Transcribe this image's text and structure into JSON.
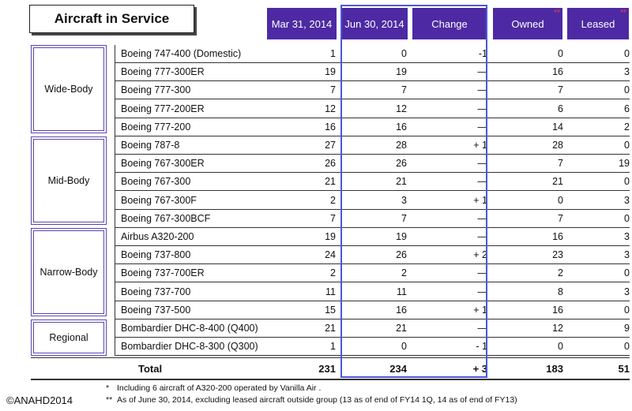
{
  "title": "Aircraft in Service",
  "headers": {
    "mar": "Mar 31, 2014",
    "jun": "Jun 30, 2014",
    "change": "Change",
    "owned": "Owned",
    "leased": "Leased",
    "owned_mark": "**",
    "leased_mark": "**"
  },
  "categories": [
    {
      "label": "Wide-Body"
    },
    {
      "label": "Mid-Body"
    },
    {
      "label": "Narrow-Body"
    },
    {
      "label": "Regional"
    }
  ],
  "rows": [
    {
      "name": "Boeing 747-400 (Domestic)",
      "mar": "1",
      "jun": "0",
      "change": "-1",
      "owned": "0",
      "leased": "0"
    },
    {
      "name": "Boeing 777-300ER",
      "mar": "19",
      "jun": "19",
      "change": "—",
      "owned": "16",
      "leased": "3"
    },
    {
      "name": "Boeing 777-300",
      "mar": "7",
      "jun": "7",
      "change": "—",
      "owned": "7",
      "leased": "0"
    },
    {
      "name": "Boeing 777-200ER",
      "mar": "12",
      "jun": "12",
      "change": "—",
      "owned": "6",
      "leased": "6"
    },
    {
      "name": "Boeing 777-200",
      "mar": "16",
      "jun": "16",
      "change": "—",
      "owned": "14",
      "leased": "2"
    },
    {
      "name": "Boeing 787-8",
      "mar": "27",
      "jun": "28",
      "change": "+ 1",
      "owned": "28",
      "leased": "0"
    },
    {
      "name": "Boeing 767-300ER",
      "mar": "26",
      "jun": "26",
      "change": "—",
      "owned": "7",
      "leased": "19"
    },
    {
      "name": "Boeing 767-300",
      "mar": "21",
      "jun": "21",
      "change": "—",
      "owned": "21",
      "leased": "0"
    },
    {
      "name": "Boeing 767-300F",
      "mar": "2",
      "jun": "3",
      "change": "+ 1",
      "owned": "0",
      "leased": "3"
    },
    {
      "name": "Boeing 767-300BCF",
      "mar": "7",
      "jun": "7",
      "change": "—",
      "owned": "7",
      "leased": "0"
    },
    {
      "name": "Airbus A320-200",
      "mar": "19",
      "jun": "19",
      "change": "—",
      "owned": "16",
      "leased": "3"
    },
    {
      "name": "Boeing 737-800",
      "mar": "24",
      "jun": "26",
      "change": "+ 2",
      "owned": "23",
      "leased": "3"
    },
    {
      "name": "Boeing 737-700ER",
      "mar": "2",
      "jun": "2",
      "change": "—",
      "owned": "2",
      "leased": "0"
    },
    {
      "name": "Boeing 737-700",
      "mar": "11",
      "jun": "11",
      "change": "—",
      "owned": "8",
      "leased": "3"
    },
    {
      "name": "Boeing 737-500",
      "mar": "15",
      "jun": "16",
      "change": "+ 1",
      "owned": "16",
      "leased": "0"
    },
    {
      "name": "Bombardier DHC-8-400 (Q400)",
      "mar": "21",
      "jun": "21",
      "change": "—",
      "owned": "12",
      "leased": "9"
    },
    {
      "name": "Bombardier DHC-8-300 (Q300)",
      "mar": "1",
      "jun": "0",
      "change": "- 1",
      "owned": "0",
      "leased": "0"
    }
  ],
  "total": {
    "label": "Total",
    "mar": "231",
    "jun": "234",
    "change": "+ 3",
    "owned": "183",
    "leased": "51"
  },
  "copyright": "©ANAHD2014",
  "notes": [
    {
      "mark": "*",
      "text": "Including 6 aircraft of A320-200 operated by Vanilla Air ."
    },
    {
      "mark": "**",
      "text": "As of June 30, 2014, excluding leased aircraft outside group (13 as of end of FY14 1Q, 14 as of  end of FY13)"
    }
  ]
}
